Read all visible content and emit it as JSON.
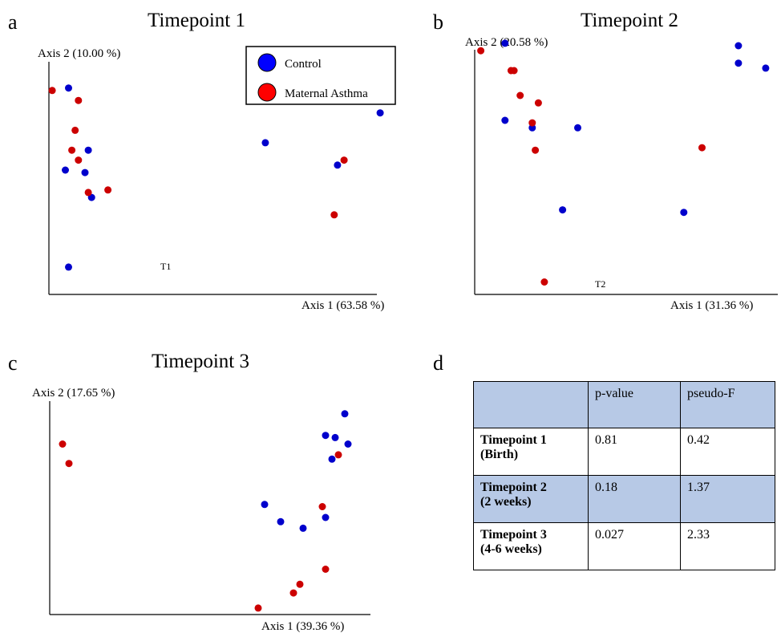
{
  "figure": {
    "panel_labels": [
      "a",
      "b",
      "c",
      "d"
    ],
    "legend": {
      "items": [
        {
          "label": "Control",
          "color": "#0000ff"
        },
        {
          "label": "Maternal Asthma",
          "color": "#ff0000"
        }
      ]
    },
    "table": {
      "headers": [
        "",
        "p-value",
        "pseudo-F"
      ],
      "rows": [
        {
          "label_line1": "Timepoint 1",
          "label_line2": "(Birth)",
          "p_value": "0.81",
          "pseudo_f": "0.42",
          "shaded": false
        },
        {
          "label_line1": "Timepoint 2",
          "label_line2": "(2 weeks)",
          "p_value": "0.18",
          "pseudo_f": "1.37",
          "shaded": true
        },
        {
          "label_line1": "Timepoint 3",
          "label_line2": "(4-6 weeks)",
          "p_value": "0.027",
          "pseudo_f": "2.33",
          "shaded": false
        }
      ]
    },
    "colors": {
      "control": "#0000cc",
      "asthma": "#cc0000",
      "table_shade": "#b7c9e6"
    }
  },
  "chart_data": [
    {
      "type": "scatter",
      "title": "Timepoint 1",
      "xlabel": "Axis 1 (63.58 %)",
      "ylabel": "Axis 2 (10.00 %)",
      "annotation": "T1",
      "xlim": [
        0,
        100
      ],
      "ylim": [
        0,
        100
      ],
      "grid": false,
      "legend_position": "top-right",
      "series": [
        {
          "name": "Control",
          "color": "#0000cc",
          "points": [
            [
              6,
              83
            ],
            [
              12,
              58
            ],
            [
              5,
              50
            ],
            [
              11,
              49
            ],
            [
              13,
              39
            ],
            [
              6,
              11
            ],
            [
              66,
              61
            ],
            [
              88,
              52
            ],
            [
              101,
              73
            ]
          ]
        },
        {
          "name": "Maternal Asthma",
          "color": "#cc0000",
          "points": [
            [
              1,
              82
            ],
            [
              9,
              78
            ],
            [
              8,
              66
            ],
            [
              7,
              58
            ],
            [
              9,
              54
            ],
            [
              12,
              41
            ],
            [
              18,
              42
            ],
            [
              90,
              54
            ],
            [
              87,
              32
            ]
          ]
        }
      ]
    },
    {
      "type": "scatter",
      "title": "Timepoint 2",
      "xlabel": "Axis 1 (31.36 %)",
      "ylabel": "Axis 2 (20.58 %)",
      "annotation": "T2",
      "xlim": [
        0,
        100
      ],
      "ylim": [
        0,
        100
      ],
      "grid": false,
      "series": [
        {
          "name": "Control",
          "color": "#0000cc",
          "points": [
            [
              10,
              101
            ],
            [
              10,
              70
            ],
            [
              19,
              67
            ],
            [
              34,
              67
            ],
            [
              29,
              34
            ],
            [
              69,
              33
            ],
            [
              87,
              100
            ],
            [
              87,
              93
            ],
            [
              96,
              91
            ]
          ]
        },
        {
          "name": "Maternal Asthma",
          "color": "#cc0000",
          "points": [
            [
              2,
              98
            ],
            [
              12,
              90
            ],
            [
              13,
              90
            ],
            [
              15,
              80
            ],
            [
              21,
              77
            ],
            [
              19,
              69
            ],
            [
              20,
              58
            ],
            [
              75,
              59
            ],
            [
              23,
              5
            ]
          ]
        }
      ]
    },
    {
      "type": "scatter",
      "title": "Timepoint 3",
      "xlabel": "Axis 1 (39.36 %)",
      "ylabel": "Axis 2 (17.65 %)",
      "xlim": [
        0,
        100
      ],
      "ylim": [
        0,
        100
      ],
      "grid": false,
      "series": [
        {
          "name": "Control",
          "color": "#0000cc",
          "points": [
            [
              92,
              93
            ],
            [
              86,
              83
            ],
            [
              89,
              82
            ],
            [
              93,
              79
            ],
            [
              88,
              72
            ],
            [
              67,
              51
            ],
            [
              72,
              43
            ],
            [
              79,
              40
            ],
            [
              86,
              45
            ]
          ]
        },
        {
          "name": "Maternal Asthma",
          "color": "#cc0000",
          "points": [
            [
              4,
              79
            ],
            [
              6,
              70
            ],
            [
              90,
              74
            ],
            [
              85,
              50
            ],
            [
              86,
              21
            ],
            [
              78,
              14
            ],
            [
              76,
              10
            ],
            [
              65,
              3
            ]
          ]
        }
      ]
    }
  ]
}
